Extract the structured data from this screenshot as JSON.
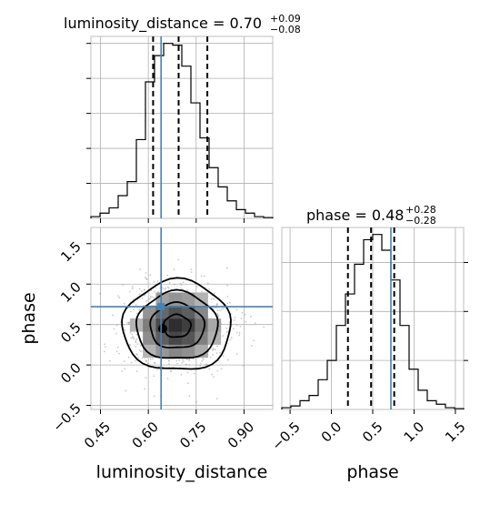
{
  "chart_data": {
    "type": "corner",
    "parameters": [
      "luminosity_distance",
      "phase"
    ],
    "truth": {
      "luminosity_distance": 0.64,
      "phase": 0.72
    },
    "colors": {
      "truth": "#4682b4",
      "hist": "#000000",
      "scatter": "#9a9a9a",
      "grid": "#b0b0b0"
    },
    "grid": true,
    "panels": [
      {
        "id": "luminosity_distance-1d",
        "title_main": "luminosity_distance = 0.70",
        "title_sup": "+0.09",
        "title_sub": "−0.08",
        "xlim": [
          0.42,
          0.99
        ],
        "quantiles": [
          0.615,
          0.695,
          0.785
        ],
        "bin_edges": [
          0.42,
          0.4485,
          0.477,
          0.5055,
          0.534,
          0.5625,
          0.591,
          0.6195,
          0.648,
          0.6765,
          0.705,
          0.7335,
          0.762,
          0.7905,
          0.819,
          0.8475,
          0.876,
          0.9045,
          0.933,
          0.9615,
          0.99
        ],
        "counts": [
          0.01,
          0.03,
          0.06,
          0.13,
          0.21,
          0.45,
          0.78,
          0.93,
          1.0,
          0.99,
          0.87,
          0.66,
          0.46,
          0.29,
          0.18,
          0.1,
          0.05,
          0.03,
          0.01,
          0.005
        ]
      },
      {
        "id": "phase-1d",
        "title_main": "phase = 0.48",
        "title_sup": "+0.28",
        "title_sub": "−0.28",
        "xlim": [
          -0.6,
          1.6
        ],
        "xticks": [
          -0.5,
          0.0,
          0.5,
          1.0,
          1.5
        ],
        "xtick_labels": [
          "−0.5",
          "0.0",
          "0.5",
          "1.0",
          "1.5"
        ],
        "xlabel": "phase",
        "quantiles": [
          0.2,
          0.48,
          0.76
        ],
        "bin_edges": [
          -0.6,
          -0.49,
          -0.38,
          -0.27,
          -0.16,
          -0.05,
          0.06,
          0.17,
          0.28,
          0.39,
          0.5,
          0.61,
          0.72,
          0.83,
          0.94,
          1.05,
          1.16,
          1.27,
          1.38,
          1.49,
          1.6
        ],
        "counts": [
          0.01,
          0.02,
          0.05,
          0.08,
          0.17,
          0.28,
          0.48,
          0.66,
          0.83,
          0.97,
          1.0,
          0.91,
          0.74,
          0.48,
          0.23,
          0.11,
          0.05,
          0.03,
          0.01,
          0.005
        ]
      },
      {
        "id": "joint-2d",
        "xlim": [
          0.42,
          0.99
        ],
        "ylim": [
          -0.55,
          1.7
        ],
        "xticks": [
          0.45,
          0.6,
          0.75,
          0.9
        ],
        "xtick_labels": [
          "0.45",
          "0.60",
          "0.75",
          "0.90"
        ],
        "yticks": [
          -0.5,
          0.0,
          0.5,
          1.0,
          1.5
        ],
        "ytick_labels": [
          "−0.5",
          "0.0",
          "0.5",
          "1.0",
          "1.5"
        ],
        "xlabel": "luminosity_distance",
        "ylabel": "phase",
        "mean": [
          0.69,
          0.48
        ],
        "sd": [
          0.085,
          0.28
        ],
        "contour_levels_sigma": [
          0.5,
          1.0,
          1.5,
          2.0
        ]
      }
    ]
  }
}
